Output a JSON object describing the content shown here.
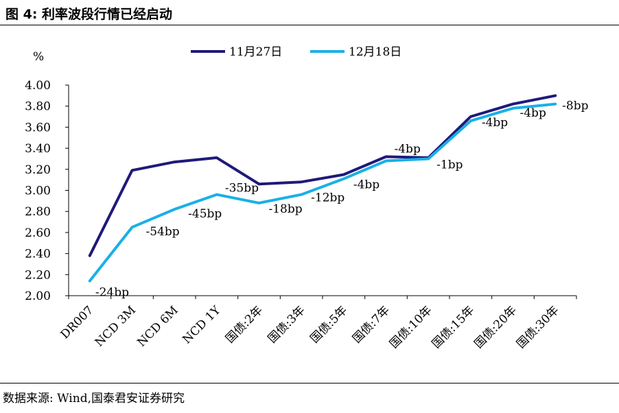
{
  "figure_title": "图 4:  利率波段行情已经启动",
  "source_note": "数据来源:  Wind,国泰君安证券研究",
  "chart_data": {
    "type": "line",
    "title": "",
    "ylabel": "%",
    "xlabel": "",
    "ylim": [
      2.0,
      4.0
    ],
    "ytick_step": 0.2,
    "grid": false,
    "legend_position": "top-center",
    "categories": [
      "DR007",
      "NCD 3M",
      "NCD 6M",
      "NCD 1Y",
      "国债:2年",
      "国债:3年",
      "国债:5年",
      "国债:7年",
      "国债:10年",
      "国债:15年",
      "国债:20年",
      "国债:30年"
    ],
    "series": [
      {
        "name": "11月27日",
        "color": "#1f1a7a",
        "values": [
          2.38,
          3.19,
          3.27,
          3.31,
          3.06,
          3.08,
          3.15,
          3.32,
          3.31,
          3.7,
          3.82,
          3.9
        ]
      },
      {
        "name": "12月18日",
        "color": "#19b0e6",
        "values": [
          2.14,
          2.65,
          2.82,
          2.96,
          2.88,
          2.96,
          3.11,
          3.28,
          3.3,
          3.66,
          3.78,
          3.82
        ]
      }
    ],
    "annotations": [
      "-24bp",
      "-54bp",
      "-45bp",
      "-35bp",
      "-18bp",
      "-12bp",
      "-4bp",
      "-4bp",
      "-1bp",
      "-4bp",
      "-4bp",
      "-8bp"
    ]
  }
}
